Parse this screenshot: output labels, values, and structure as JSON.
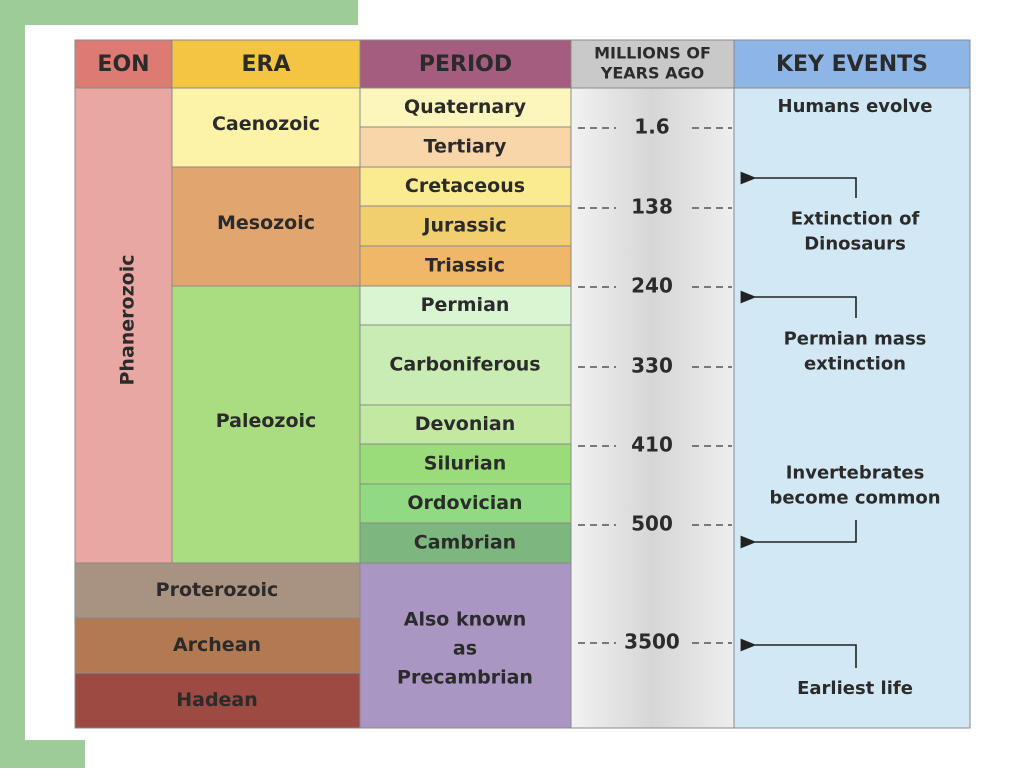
{
  "headers": [
    "EON",
    "ERA",
    "PERIOD",
    [
      "MILLIONS OF",
      "YEARS AGO"
    ],
    "KEY EVENTS"
  ],
  "eons": [
    "Phanerozoic",
    "Proterozoic",
    "Archean",
    "Hadean"
  ],
  "eras": [
    "Caenozoic",
    "Mesozoic",
    "Paleozoic"
  ],
  "periods": [
    "Quaternary",
    "Tertiary",
    "Cretaceous",
    "Jurassic",
    "Triassic",
    "Permian",
    "Carboniferous",
    "Devonian",
    "Silurian",
    "Ordovician",
    "Cambrian"
  ],
  "precambrian_note": [
    "Also known",
    "as",
    "Precambrian"
  ],
  "millions_of_years_ago": [
    1.6,
    138,
    240,
    330,
    410,
    500,
    3500
  ],
  "key_events": [
    [
      "Humans evolve"
    ],
    [
      "Extinction of",
      "Dinosaurs"
    ],
    [
      "Permian mass",
      "extinction"
    ],
    [
      "Invertebrates",
      "become common"
    ],
    [
      "Earliest life"
    ]
  ]
}
